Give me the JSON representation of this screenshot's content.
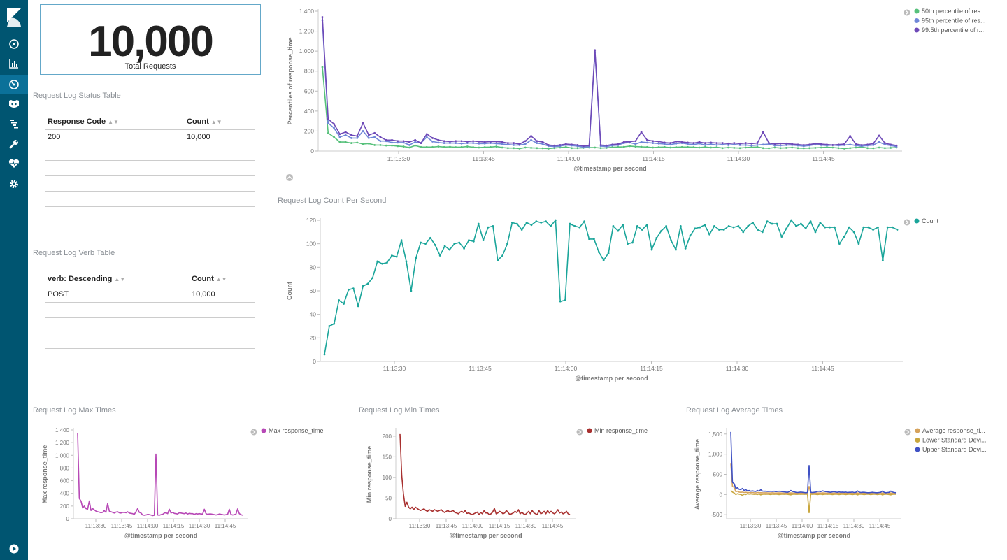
{
  "metric": {
    "value": "10,000",
    "label": "Total Requests"
  },
  "status_table": {
    "title": "Request Log Status Table",
    "headers": [
      "Response Code",
      "Count"
    ],
    "rows": [
      [
        "200",
        "10,000"
      ]
    ]
  },
  "verb_table": {
    "title": "Request Log Verb Table",
    "headers": [
      "verb: Descending",
      "Count"
    ],
    "rows": [
      [
        "POST",
        "10,000"
      ]
    ]
  },
  "sidebar_icons": [
    "kibana-logo-icon",
    "discover-compass-icon",
    "visualize-bar-chart-icon",
    "dashboard-gauge-icon",
    "timelion-icon",
    "dev-tools-icon",
    "management-wrench-icon",
    "monitoring-heart-icon",
    "settings-gear-icon",
    "collapse-play-icon"
  ],
  "chart_data": [
    {
      "id": "percentiles",
      "type": "line",
      "title": "",
      "xlabel": "@timestamp per second",
      "ylabel": "Percentiles of response_time",
      "x_ticks": [
        "11:13:30",
        "11:13:45",
        "11:14:00",
        "11:14:15",
        "11:14:30",
        "11:14:45"
      ],
      "y_ticks": [
        "0",
        "200",
        "400",
        "600",
        "800",
        "1,000",
        "1,200",
        "1,400"
      ],
      "ylim": [
        0,
        1400
      ],
      "legend": [
        "50th percentile of res...",
        "95th percentile of res...",
        "99.5th percentile of r..."
      ],
      "series": [
        {
          "name": "50th percentile of response_time",
          "color": "#57c17b",
          "values": [
            840,
            180,
            140,
            90,
            90,
            80,
            85,
            70,
            75,
            60,
            60,
            55,
            55,
            50,
            45,
            35,
            55,
            40,
            40,
            40,
            45,
            40,
            42,
            38,
            40,
            45,
            38,
            35,
            38,
            40,
            45,
            35,
            30,
            30,
            25,
            35,
            32,
            30,
            28,
            25,
            30,
            35,
            40,
            30,
            30,
            32,
            35,
            35,
            30,
            32,
            38,
            40,
            42,
            50,
            45,
            42,
            40,
            35,
            38,
            40,
            35,
            38,
            40,
            40,
            38,
            35,
            40,
            35,
            38,
            30,
            35,
            32,
            30,
            35,
            38,
            40,
            30,
            28,
            35,
            30,
            32,
            35,
            30,
            28,
            30,
            32,
            35,
            38,
            35,
            30,
            25,
            30,
            35,
            40,
            30,
            28,
            35,
            30,
            32,
            35
          ]
        },
        {
          "name": "95th percentile of response_time",
          "color": "#6f87d8",
          "values": [
            1310,
            280,
            230,
            140,
            160,
            130,
            130,
            200,
            130,
            140,
            100,
            100,
            85,
            85,
            85,
            60,
            90,
            80,
            140,
            95,
            85,
            80,
            80,
            80,
            75,
            80,
            80,
            75,
            75,
            80,
            75,
            70,
            65,
            60,
            60,
            70,
            110,
            80,
            70,
            50,
            45,
            50,
            60,
            55,
            50,
            40,
            45,
            990,
            50,
            45,
            55,
            60,
            80,
            85,
            70,
            90,
            85,
            80,
            75,
            70,
            65,
            75,
            80,
            70,
            65,
            75,
            60,
            70,
            60,
            65,
            60,
            65,
            60,
            60,
            55,
            60,
            65,
            70,
            55,
            55,
            60,
            60,
            55,
            50,
            55,
            65,
            60,
            55,
            60,
            55,
            60,
            65,
            55,
            50,
            55,
            60,
            90,
            65,
            55,
            45
          ]
        },
        {
          "name": "99.5th percentile of response_time",
          "color": "#6e4ab8",
          "values": [
            1340,
            320,
            270,
            170,
            190,
            160,
            150,
            280,
            160,
            180,
            140,
            110,
            110,
            100,
            100,
            90,
            110,
            80,
            170,
            130,
            110,
            100,
            95,
            100,
            100,
            95,
            100,
            95,
            90,
            95,
            95,
            90,
            80,
            80,
            70,
            100,
            150,
            100,
            90,
            60,
            55,
            60,
            70,
            65,
            60,
            50,
            55,
            1010,
            60,
            55,
            65,
            70,
            90,
            95,
            100,
            190,
            110,
            100,
            95,
            85,
            80,
            95,
            90,
            85,
            80,
            90,
            80,
            85,
            80,
            80,
            75,
            80,
            75,
            80,
            75,
            80,
            190,
            80,
            70,
            75,
            75,
            70,
            65,
            60,
            65,
            75,
            70,
            65,
            60,
            65,
            70,
            150,
            70,
            60,
            65,
            75,
            155,
            80,
            65,
            55
          ]
        }
      ]
    },
    {
      "id": "count",
      "type": "line",
      "title": "Request Log Count Per Second",
      "xlabel": "@timestamp per second",
      "ylabel": "Count",
      "x_ticks": [
        "11:13:30",
        "11:13:45",
        "11:14:00",
        "11:14:15",
        "11:14:30",
        "11:14:45"
      ],
      "y_ticks": [
        "0",
        "20",
        "40",
        "60",
        "80",
        "100",
        "120"
      ],
      "ylim": [
        0,
        120
      ],
      "legend": [
        "Count"
      ],
      "series": [
        {
          "name": "Count",
          "color": "#1aa59a",
          "values": [
            6,
            30,
            32,
            52,
            49,
            61,
            62,
            47,
            64,
            66,
            71,
            85,
            83,
            84,
            90,
            89,
            103,
            85,
            60,
            88,
            101,
            100,
            105,
            99,
            90,
            98,
            95,
            100,
            101,
            96,
            103,
            102,
            117,
            103,
            114,
            115,
            86,
            90,
            100,
            118,
            117,
            112,
            118,
            116,
            119,
            118,
            119,
            115,
            120,
            51,
            52,
            117,
            115,
            114,
            119,
            104,
            104,
            93,
            86,
            92,
            115,
            111,
            116,
            100,
            101,
            115,
            112,
            116,
            95,
            105,
            111,
            115,
            103,
            95,
            115,
            96,
            107,
            113,
            114,
            116,
            108,
            115,
            112,
            112,
            115,
            114,
            115,
            110,
            115,
            118,
            112,
            110,
            119,
            117,
            117,
            106,
            113,
            120,
            115,
            117,
            113,
            119,
            110,
            118,
            114,
            114,
            114,
            100,
            106,
            114,
            110,
            100,
            114,
            114,
            112,
            114,
            86,
            114,
            114,
            112
          ]
        }
      ]
    },
    {
      "id": "max",
      "type": "line",
      "title": "Request Log Max Times",
      "xlabel": "@timestamp per second",
      "ylabel": "Max response_time",
      "x_ticks": [
        "11:13:30",
        "11:13:45",
        "11:14:00",
        "11:14:15",
        "11:14:30",
        "11:14:45"
      ],
      "y_ticks": [
        "0",
        "200",
        "400",
        "600",
        "800",
        "1,000",
        "1,200",
        "1,400"
      ],
      "ylim": [
        0,
        1400
      ],
      "legend": [
        "Max response_time"
      ],
      "series": [
        {
          "name": "Max response_time",
          "color": "#b748b6",
          "values": [
            1350,
            320,
            280,
            170,
            200,
            160,
            150,
            280,
            130,
            160,
            140,
            120,
            110,
            105,
            95,
            100,
            130,
            100,
            240,
            120,
            110,
            100,
            90,
            105,
            110,
            95,
            90,
            100,
            100,
            95,
            110,
            90,
            85,
            80,
            70,
            110,
            160,
            100,
            90,
            60,
            55,
            60,
            70,
            65,
            60,
            50,
            55,
            1020,
            60,
            55,
            65,
            70,
            90,
            95,
            80,
            150,
            90,
            100,
            85,
            80,
            75,
            95,
            90,
            85,
            80,
            90,
            75,
            85,
            80,
            80,
            70,
            80,
            75,
            80,
            75,
            75,
            150,
            80,
            70,
            75,
            75,
            70,
            65,
            60,
            65,
            75,
            70,
            65,
            60,
            65,
            70,
            150,
            70,
            60,
            65,
            75,
            155,
            80,
            65,
            55
          ]
        }
      ]
    },
    {
      "id": "min",
      "type": "line",
      "title": "Request Log Min Times",
      "xlabel": "@timestamp per second",
      "ylabel": "Min response_time",
      "x_ticks": [
        "11:13:30",
        "11:13:45",
        "11:14:00",
        "11:14:15",
        "11:14:30",
        "11:14:45"
      ],
      "y_ticks": [
        "0",
        "50",
        "100",
        "150",
        "200"
      ],
      "ylim": [
        0,
        215
      ],
      "legend": [
        "Min response_time"
      ],
      "series": [
        {
          "name": "Min response_time",
          "color": "#a8302f",
          "values": [
            205,
            105,
            60,
            30,
            40,
            28,
            24,
            28,
            22,
            28,
            25,
            22,
            20,
            22,
            24,
            20,
            18,
            22,
            20,
            18,
            22,
            20,
            18,
            20,
            22,
            18,
            15,
            18,
            20,
            16,
            18,
            20,
            15,
            14,
            12,
            16,
            18,
            15,
            20,
            13,
            14,
            12,
            10,
            12,
            14,
            16,
            10,
            15,
            12,
            20,
            14,
            14,
            10,
            12,
            16,
            25,
            12,
            14,
            18,
            16,
            12,
            14,
            20,
            15,
            10,
            12,
            14,
            18,
            15,
            22,
            12,
            16,
            12,
            10,
            14,
            18,
            12,
            20,
            14,
            12,
            10,
            20,
            12,
            14,
            18,
            12,
            20,
            14,
            18,
            14,
            12,
            16,
            22,
            14,
            16,
            12,
            14,
            18,
            12,
            10
          ]
        }
      ]
    },
    {
      "id": "avg",
      "type": "line",
      "title": "Request Log Average Times",
      "xlabel": "@timestamp per second",
      "ylabel": "Average response_time",
      "x_ticks": [
        "11:13:30",
        "11:13:45",
        "11:14:00",
        "11:14:15",
        "11:14:30",
        "11:14:45"
      ],
      "y_ticks": [
        "-500",
        "0",
        "500",
        "1,000",
        "1,500"
      ],
      "ylim": [
        -600,
        1600
      ],
      "legend": [
        "Average response_ti...",
        "Lower Standard Devi...",
        "Upper Standard Devi..."
      ],
      "series": [
        {
          "name": "Average response_time",
          "color": "#d6a35c",
          "values": [
            780,
            200,
            180,
            70,
            80,
            60,
            55,
            60,
            50,
            55,
            48,
            50,
            45,
            48,
            42,
            40,
            50,
            42,
            45,
            42,
            40,
            42,
            40,
            38,
            40,
            42,
            38,
            35,
            38,
            40,
            38,
            35,
            32,
            30,
            28,
            35,
            40,
            38,
            32,
            28,
            26,
            28,
            30,
            28,
            26,
            25,
            24,
            200,
            28,
            26,
            28,
            30,
            35,
            38,
            34,
            40,
            38,
            34,
            32,
            30,
            28,
            32,
            34,
            30,
            28,
            32,
            28,
            30,
            28,
            30,
            26,
            28,
            27,
            28,
            26,
            28,
            40,
            28,
            26,
            28,
            28,
            26,
            24,
            22,
            24,
            28,
            26,
            24,
            22,
            24,
            26,
            40,
            26,
            22,
            24,
            28,
            40,
            30,
            24,
            22
          ]
        },
        {
          "name": "Lower Standard Deviation",
          "color": "#c9a73e",
          "values": [
            100,
            60,
            40,
            0,
            20,
            10,
            0,
            -20,
            10,
            0,
            20,
            10,
            15,
            10,
            5,
            10,
            0,
            15,
            -10,
            5,
            10,
            5,
            10,
            5,
            0,
            10,
            5,
            10,
            5,
            0,
            5,
            10,
            5,
            10,
            5,
            0,
            -10,
            5,
            10,
            5,
            5,
            10,
            5,
            10,
            5,
            10,
            5,
            -450,
            10,
            5,
            10,
            5,
            0,
            5,
            10,
            0,
            5,
            10,
            5,
            10,
            5,
            0,
            5,
            10,
            5,
            0,
            5,
            10,
            5,
            0,
            5,
            10,
            5,
            0,
            5,
            10,
            -10,
            5,
            10,
            5,
            0,
            5,
            10,
            5,
            0,
            5,
            10,
            5,
            0,
            5,
            10,
            -10,
            5,
            10,
            5,
            0,
            -10,
            5,
            10,
            5
          ]
        },
        {
          "name": "Upper Standard Deviation",
          "color": "#3f51c4",
          "values": [
            1550,
            300,
            270,
            150,
            170,
            130,
            120,
            150,
            100,
            120,
            90,
            100,
            80,
            90,
            80,
            75,
            100,
            80,
            120,
            85,
            80,
            80,
            75,
            75,
            80,
            75,
            80,
            70,
            75,
            80,
            75,
            70,
            65,
            60,
            55,
            70,
            100,
            75,
            65,
            55,
            50,
            55,
            60,
            55,
            50,
            45,
            50,
            720,
            55,
            50,
            55,
            60,
            75,
            80,
            70,
            90,
            80,
            70,
            65,
            60,
            55,
            65,
            70,
            60,
            55,
            65,
            55,
            60,
            55,
            60,
            50,
            55,
            55,
            60,
            50,
            55,
            90,
            60,
            50,
            55,
            55,
            50,
            45,
            45,
            50,
            55,
            50,
            45,
            45,
            50,
            55,
            85,
            55,
            45,
            50,
            55,
            85,
            60,
            50,
            45
          ]
        }
      ]
    }
  ]
}
